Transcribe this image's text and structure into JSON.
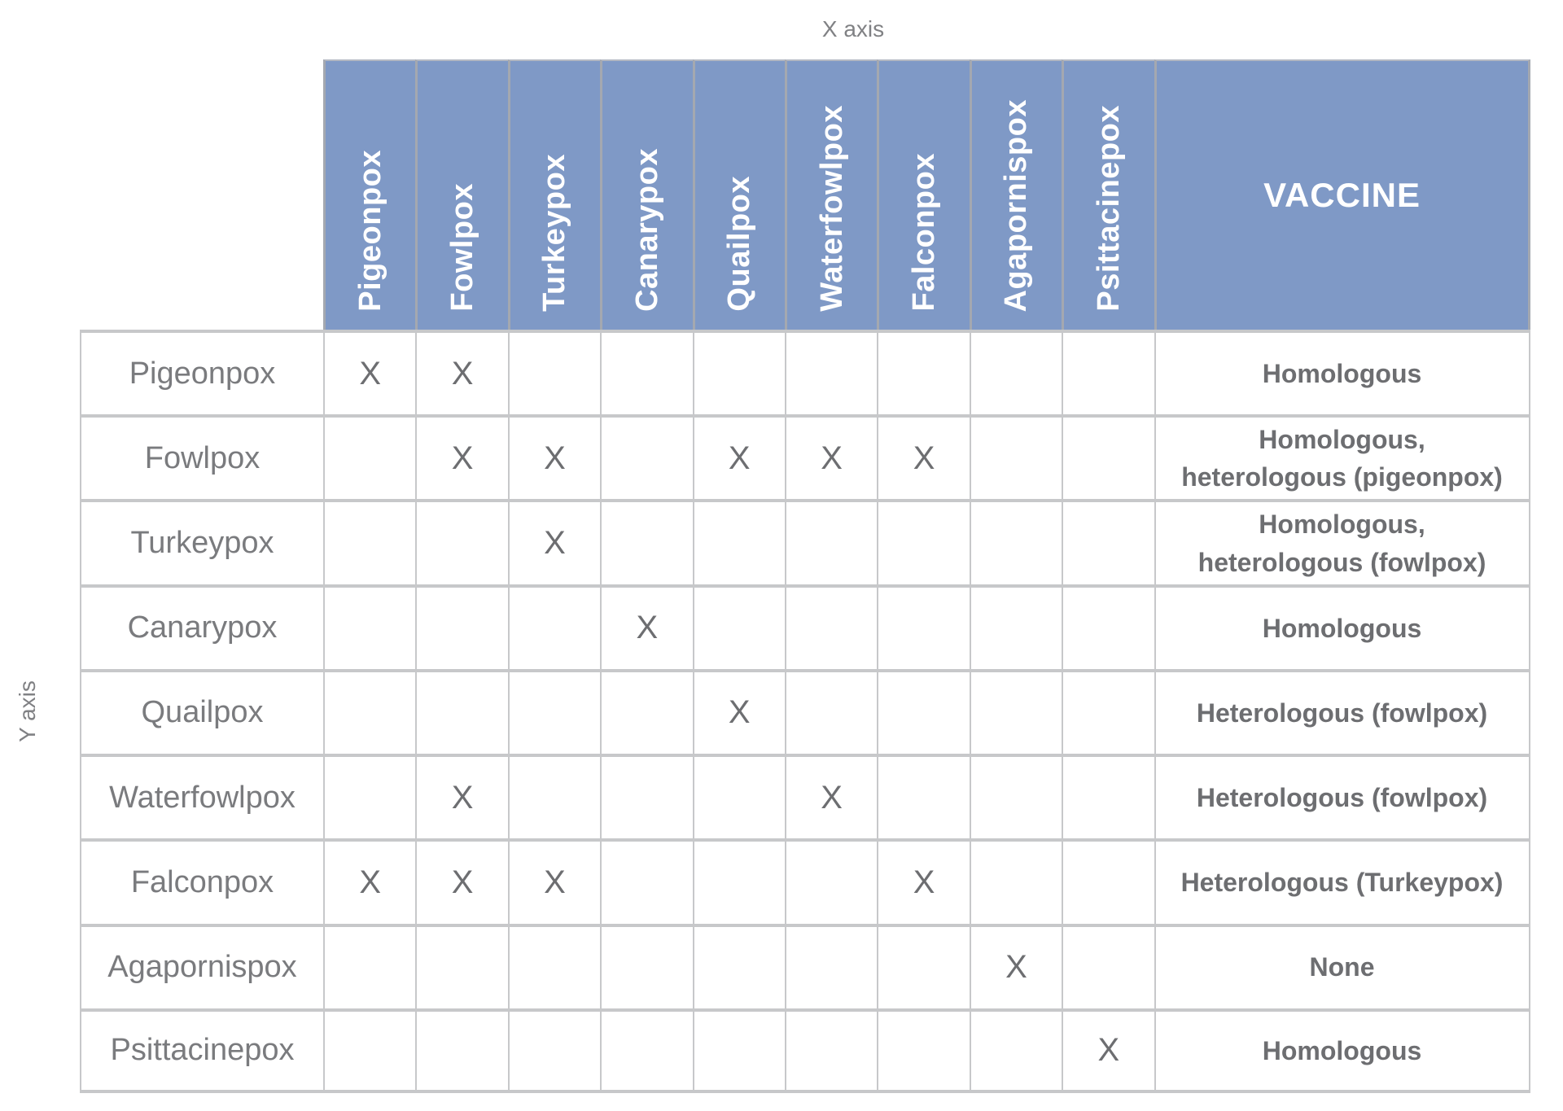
{
  "chart_data": {
    "type": "table",
    "x_axis_label": "X axis",
    "y_axis_label": "Y axis",
    "mark_symbol": "X",
    "column_headers": [
      "Pigeonpox",
      "Fowlpox",
      "Turkeypox",
      "Canarypox",
      "Quailpox",
      "Waterfowlpox",
      "Falconpox",
      "Agapornispox",
      "Psittacinepox",
      "VACCINE"
    ],
    "rows": [
      {
        "label": "Pigeonpox",
        "cells": [
          "X",
          "X",
          "",
          "",
          "",
          "",
          "",
          "",
          ""
        ],
        "vaccine": "Homologous"
      },
      {
        "label": "Fowlpox",
        "cells": [
          "",
          "X",
          "X",
          "",
          "X",
          "X",
          "X",
          "",
          ""
        ],
        "vaccine": "Homologous,\nheterologous (pigeonpox)"
      },
      {
        "label": "Turkeypox",
        "cells": [
          "",
          "",
          "X",
          "",
          "",
          "",
          "",
          "",
          ""
        ],
        "vaccine": "Homologous,\nheterologous (fowlpox)"
      },
      {
        "label": "Canarypox",
        "cells": [
          "",
          "",
          "",
          "X",
          "",
          "",
          "",
          "",
          ""
        ],
        "vaccine": "Homologous"
      },
      {
        "label": "Quailpox",
        "cells": [
          "",
          "",
          "",
          "",
          "X",
          "",
          "",
          "",
          ""
        ],
        "vaccine": "Heterologous (fowlpox)"
      },
      {
        "label": "Waterfowlpox",
        "cells": [
          "",
          "X",
          "",
          "",
          "",
          "X",
          "",
          "",
          ""
        ],
        "vaccine": "Heterologous (fowlpox)"
      },
      {
        "label": "Falconpox",
        "cells": [
          "X",
          "X",
          "X",
          "",
          "",
          "",
          "X",
          "",
          ""
        ],
        "vaccine": "Heterologous (Turkeypox)"
      },
      {
        "label": "Agapornispox",
        "cells": [
          "",
          "",
          "",
          "",
          "",
          "",
          "",
          "X",
          ""
        ],
        "vaccine": "None"
      },
      {
        "label": "Psittacinepox",
        "cells": [
          "",
          "",
          "",
          "",
          "",
          "",
          "",
          "",
          "X"
        ],
        "vaccine": "Homologous"
      }
    ],
    "layout": {
      "grid": "on",
      "column_header_orientation": "vertical-bottom-to-top",
      "vaccine_column_position": "right"
    }
  },
  "colors": {
    "header_background": "#7f99c6",
    "header_text": "#ffffff",
    "grid_line": "#c7c8ca",
    "header_divider": "#a4a8b0",
    "row_label_text": "#7a7b7e",
    "mark_and_value_text": "#6d6e71",
    "axis_label_text": "#808184"
  }
}
